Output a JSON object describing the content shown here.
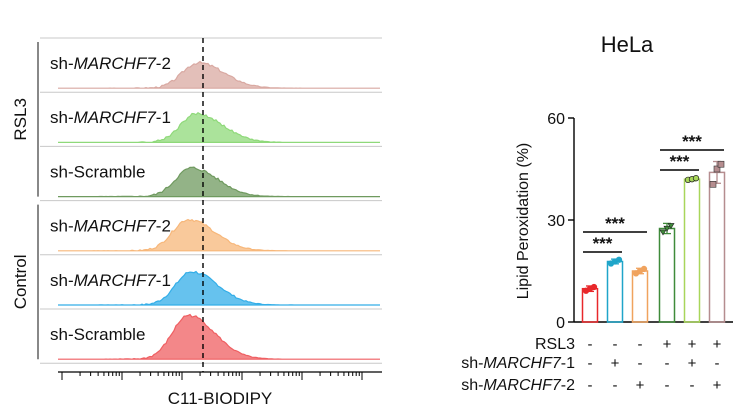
{
  "chart_data": [
    {
      "type": "area",
      "xlabel": "C11-BIODIPY",
      "groups": [
        {
          "name": "RSL3",
          "tracks": [
            0,
            1,
            2
          ]
        },
        {
          "name": "Control",
          "tracks": [
            3,
            4,
            5
          ]
        }
      ],
      "tracks": [
        {
          "name": "sh-",
          "name_gene": "MARCHF7",
          "name_suffix": "-2",
          "color": "#d9a9a2",
          "peak_x": 0.435,
          "peak_height": 0.55
        },
        {
          "name": "sh-",
          "name_gene": "MARCHF7",
          "name_suffix": "-1",
          "color": "#8fd97a",
          "peak_x": 0.43,
          "peak_height": 0.62
        },
        {
          "name": "sh-Scramble",
          "name_gene": "",
          "name_suffix": "",
          "color": "#6f9a5f",
          "peak_x": 0.415,
          "peak_height": 0.62
        },
        {
          "name": "sh-",
          "name_gene": "MARCHF7",
          "name_suffix": "-2",
          "color": "#f7b77a",
          "peak_x": 0.405,
          "peak_height": 0.68
        },
        {
          "name": "sh-",
          "name_gene": "MARCHF7",
          "name_suffix": "-1",
          "color": "#33aee8",
          "peak_x": 0.415,
          "peak_height": 0.72
        },
        {
          "name": "sh-Scramble",
          "name_gene": "",
          "name_suffix": "",
          "color": "#ef5f62",
          "peak_x": 0.405,
          "peak_height": 0.95
        }
      ],
      "reference_line": "dashed vertical"
    },
    {
      "type": "bar",
      "title": "HeLa",
      "ylabel": "Lipid Peroxidation (%)",
      "ylim": [
        0,
        60
      ],
      "yticks": [
        "0",
        "30",
        "60"
      ],
      "categories": [
        "1",
        "2",
        "3",
        "4",
        "5",
        "6"
      ],
      "values": [
        9.8,
        17.8,
        15.0,
        27.5,
        42.0,
        44.0
      ],
      "error": [
        0.8,
        0.7,
        0.8,
        1.5,
        0.5,
        3.2
      ],
      "points": [
        [
          9.2,
          9.8,
          10.3
        ],
        [
          17.2,
          17.8,
          18.3
        ],
        [
          14.3,
          15.0,
          15.6
        ],
        [
          26.5,
          27.6,
          28.4
        ],
        [
          41.8,
          42.0,
          42.3
        ],
        [
          40.5,
          45.0,
          46.4
        ]
      ],
      "colors": [
        "#e8282b",
        "#1fa5c9",
        "#f0a35e",
        "#3f8b3a",
        "#a8d65a",
        "#b58d8f"
      ],
      "significance": [
        {
          "from": 0,
          "to": 1,
          "label": "***"
        },
        {
          "from": 0,
          "to": 2,
          "label": "***"
        },
        {
          "from": 3,
          "to": 4,
          "label": "***"
        },
        {
          "from": 3,
          "to": 5,
          "label": "***"
        }
      ],
      "conditions": [
        {
          "name": "RSL3",
          "gene": "",
          "suffix": "",
          "marks": [
            "-",
            "-",
            "-",
            "+",
            "+",
            "+"
          ]
        },
        {
          "name": "sh-",
          "gene": "MARCHF7",
          "suffix": "-1",
          "marks": [
            "-",
            "+",
            "-",
            "-",
            "+",
            "-"
          ]
        },
        {
          "name": "sh-",
          "gene": "MARCHF7",
          "suffix": "-2",
          "marks": [
            "-",
            "-",
            "+",
            "-",
            "-",
            "+"
          ]
        }
      ]
    }
  ]
}
